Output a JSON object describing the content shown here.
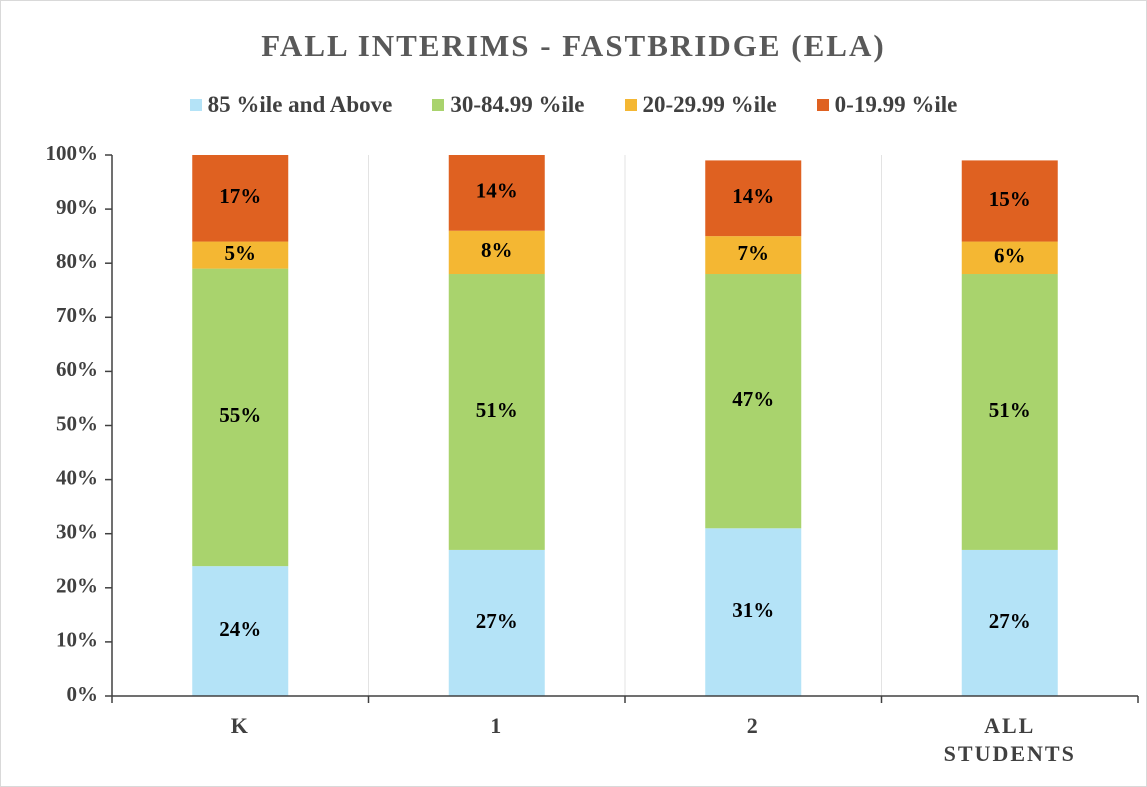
{
  "chart_data": {
    "type": "stacked_bar",
    "title": "FALL INTERIMS - FASTBRIDGE (ELA)",
    "categories": [
      "K",
      "1",
      "2",
      "ALL STUDENTS"
    ],
    "series": [
      {
        "name": "85 %ile and Above",
        "color": "#b4e3f7",
        "values": [
          24,
          27,
          31,
          27
        ],
        "value_labels": [
          "24%",
          "27%",
          "31%",
          "27%"
        ]
      },
      {
        "name": "30-84.99 %ile",
        "color": "#a9d36d",
        "values": [
          55,
          51,
          47,
          51
        ],
        "value_labels": [
          "55%",
          "51%",
          "47%",
          "51%"
        ]
      },
      {
        "name": "20-29.99 %ile",
        "color": "#f4b733",
        "values": [
          5,
          8,
          7,
          6
        ],
        "value_labels": [
          "5%",
          "8%",
          "7%",
          "6%"
        ]
      },
      {
        "name": "0-19.99 %ile",
        "color": "#df6121",
        "values": [
          17,
          14,
          14,
          15
        ],
        "value_labels": [
          "17%",
          "14%",
          "14%",
          "15%"
        ]
      }
    ],
    "ylim": [
      0,
      100
    ],
    "yticks": [
      {
        "value": 0,
        "label": "0%"
      },
      {
        "value": 10,
        "label": "10%"
      },
      {
        "value": 20,
        "label": "20%"
      },
      {
        "value": 30,
        "label": "30%"
      },
      {
        "value": 40,
        "label": "40%"
      },
      {
        "value": 50,
        "label": "50%"
      },
      {
        "value": 60,
        "label": "60%"
      },
      {
        "value": 70,
        "label": "70%"
      },
      {
        "value": 80,
        "label": "80%"
      },
      {
        "value": 90,
        "label": "90%"
      },
      {
        "value": 100,
        "label": "100%"
      }
    ],
    "legend": "top"
  }
}
